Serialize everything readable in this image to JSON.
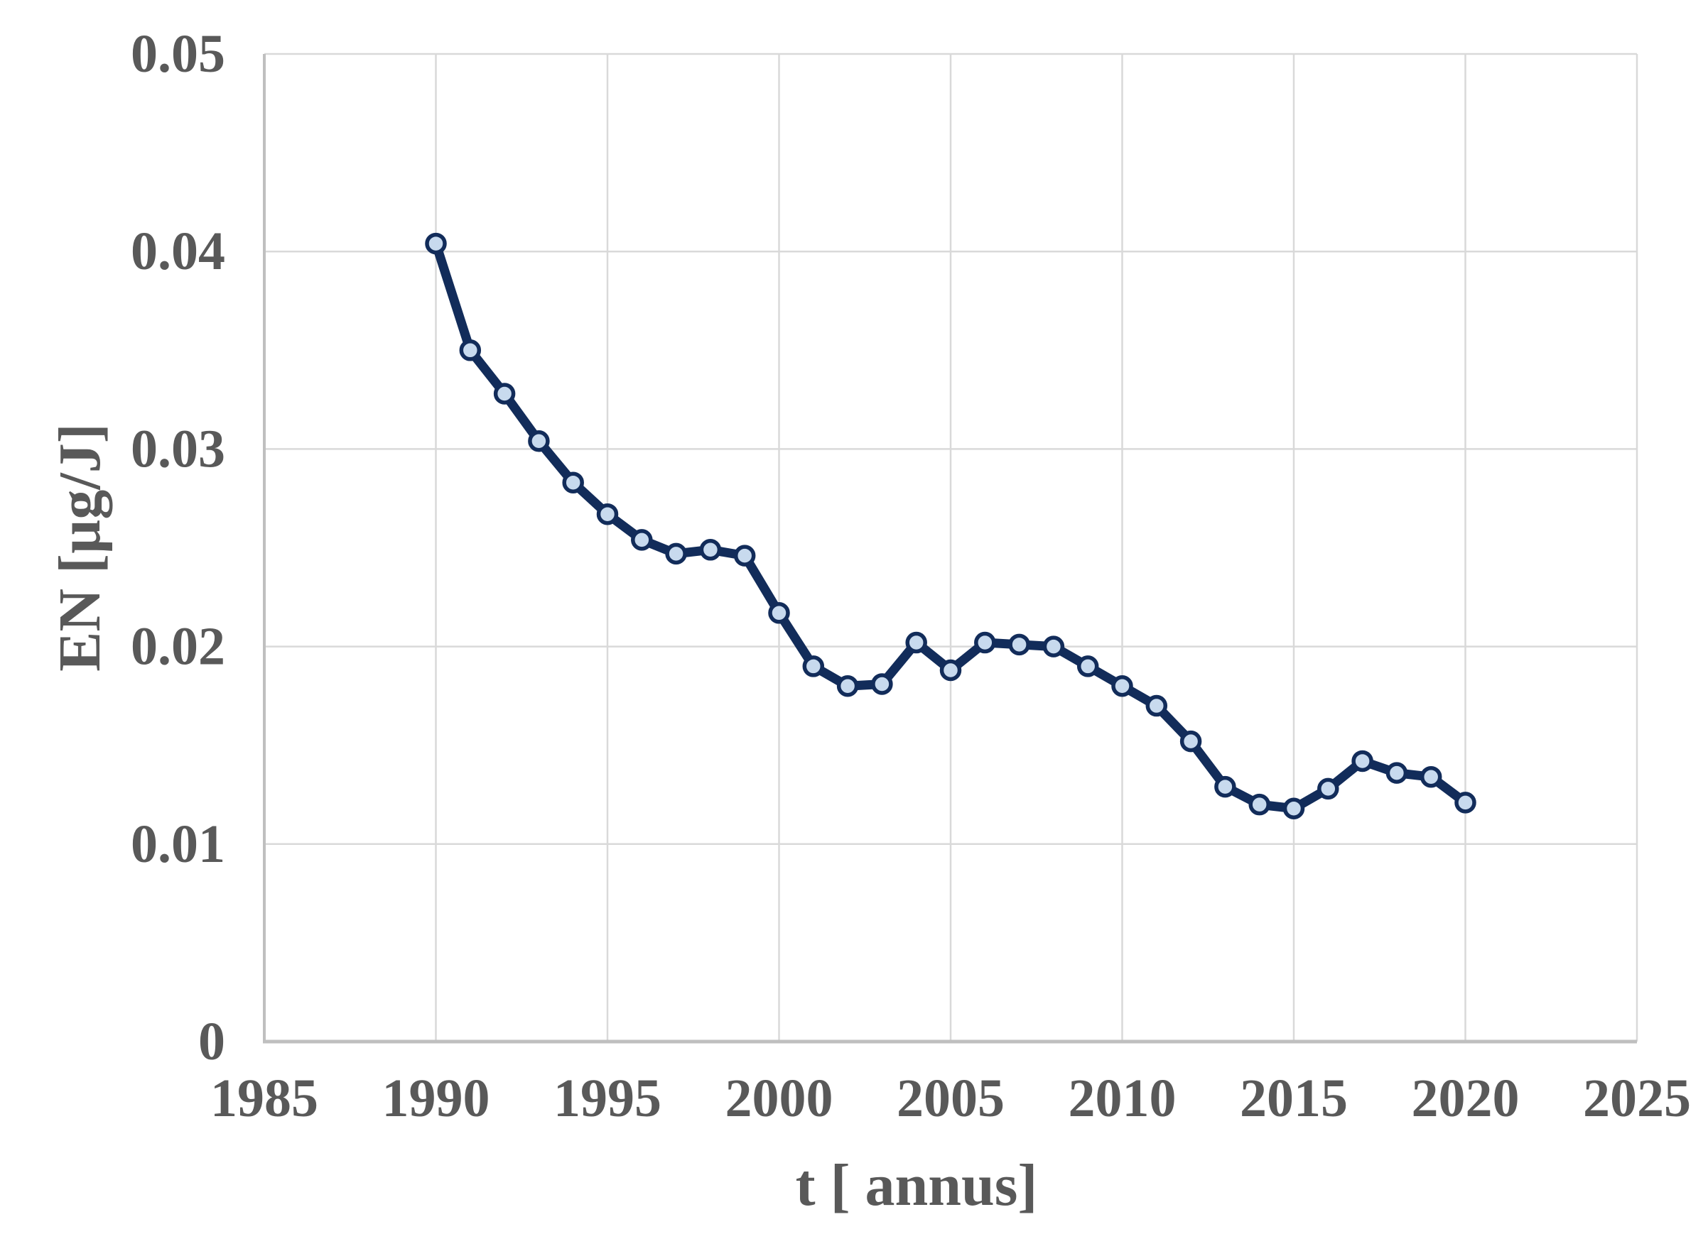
{
  "chart_data": {
    "type": "line",
    "title": "",
    "xlabel": "t [ annus]",
    "ylabel": "EN [µg/J]",
    "x": [
      1990,
      1991,
      1992,
      1993,
      1994,
      1995,
      1996,
      1997,
      1998,
      1999,
      2000,
      2001,
      2002,
      2003,
      2004,
      2005,
      2006,
      2007,
      2008,
      2009,
      2010,
      2011,
      2012,
      2013,
      2014,
      2015,
      2016,
      2017,
      2018,
      2019,
      2020
    ],
    "series": [
      {
        "name": "EN",
        "values": [
          0.0404,
          0.035,
          0.0328,
          0.0304,
          0.0283,
          0.0267,
          0.0254,
          0.0247,
          0.0249,
          0.0246,
          0.0217,
          0.019,
          0.018,
          0.0181,
          0.0202,
          0.0188,
          0.0202,
          0.0201,
          0.02,
          0.019,
          0.018,
          0.017,
          0.0152,
          0.0129,
          0.012,
          0.0118,
          0.0128,
          0.0142,
          0.0136,
          0.0134,
          0.0121
        ]
      }
    ],
    "xlim": [
      1985,
      2025
    ],
    "ylim": [
      0,
      0.05
    ],
    "xticks": [
      1985,
      1990,
      1995,
      2000,
      2005,
      2010,
      2015,
      2020,
      2025
    ],
    "xtick_labels": [
      "1985",
      "1990",
      "1995",
      "2000",
      "2005",
      "2010",
      "2015",
      "2020",
      "2025"
    ],
    "yticks": [
      0,
      0.01,
      0.02,
      0.03,
      0.04,
      0.05
    ],
    "ytick_labels": [
      "0",
      "0.01",
      "0.02",
      "0.03",
      "0.04",
      "0.05"
    ],
    "grid": true,
    "legend": false,
    "marker": "circle",
    "colors": {
      "line": "#122C5A",
      "marker_fill": "#C8DAEE",
      "marker_border": "#122C5A",
      "grid": "#D9D9D9",
      "axis": "#BFBFBF",
      "tick_text": "#595959",
      "title_text": "#595959",
      "background": "#FFFFFF"
    }
  }
}
